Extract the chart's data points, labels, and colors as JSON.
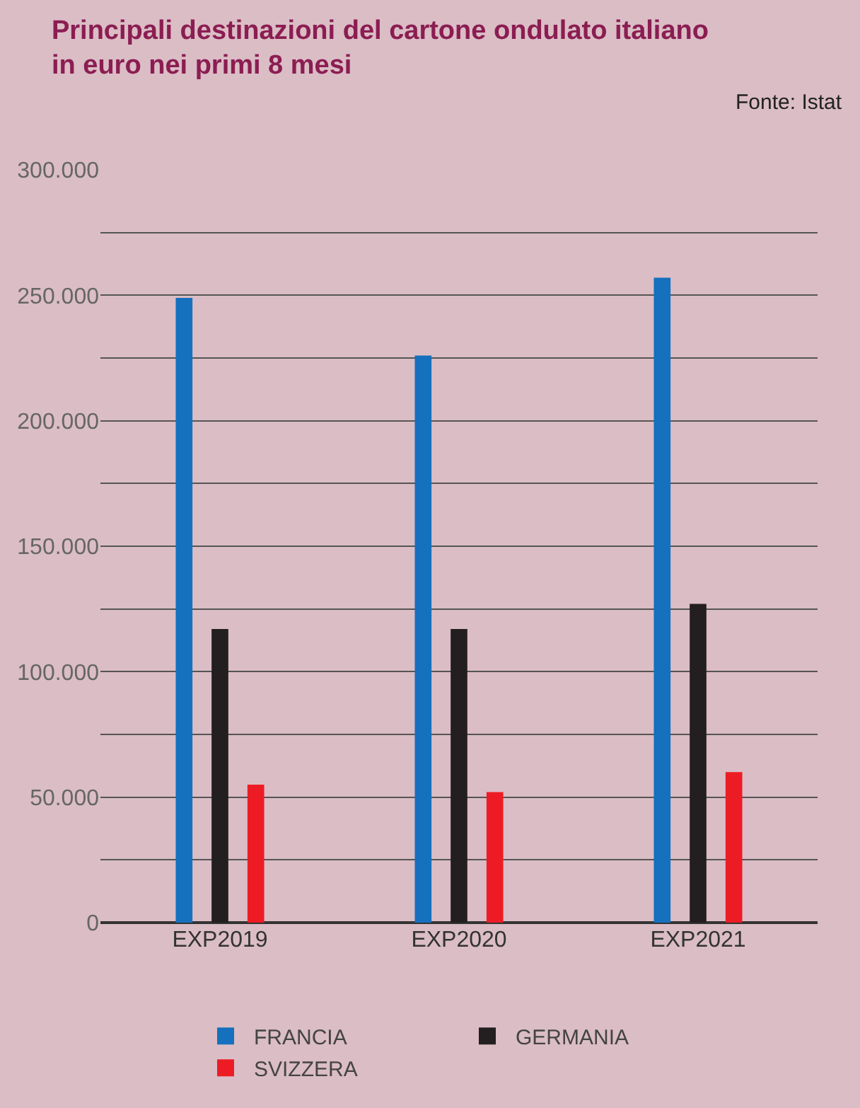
{
  "chart_data": {
    "type": "bar",
    "title": "Principali destinazioni del cartone ondulato italiano\nin euro nei primi 8 mesi",
    "annotations": [
      "Fonte: Istat"
    ],
    "categories": [
      "EXP2019",
      "EXP2020",
      "EXP2021"
    ],
    "series": [
      {
        "name": "FRANCIA",
        "color": "#1570be",
        "values": [
          249000,
          226000,
          257000
        ]
      },
      {
        "name": "GERMANIA",
        "color": "#231f20",
        "values": [
          117000,
          117000,
          127000
        ]
      },
      {
        "name": "SVIZZERA",
        "color": "#ed1c24",
        "values": [
          55000,
          52000,
          60000
        ]
      }
    ],
    "ylim": [
      0,
      300000
    ],
    "yticks": [
      {
        "value": 0,
        "label": "0"
      },
      {
        "value": 25000,
        "label": null
      },
      {
        "value": 50000,
        "label": "50.000"
      },
      {
        "value": 75000,
        "label": null
      },
      {
        "value": 100000,
        "label": "100.000"
      },
      {
        "value": 125000,
        "label": null
      },
      {
        "value": 150000,
        "label": "150.000"
      },
      {
        "value": 175000,
        "label": null
      },
      {
        "value": 200000,
        "label": "200.000"
      },
      {
        "value": 225000,
        "label": null
      },
      {
        "value": 250000,
        "label": "250.000"
      },
      {
        "value": 275000,
        "label": null
      },
      {
        "value": 300000,
        "label": "300.000"
      }
    ],
    "grid": "y",
    "legend": "bottom"
  }
}
